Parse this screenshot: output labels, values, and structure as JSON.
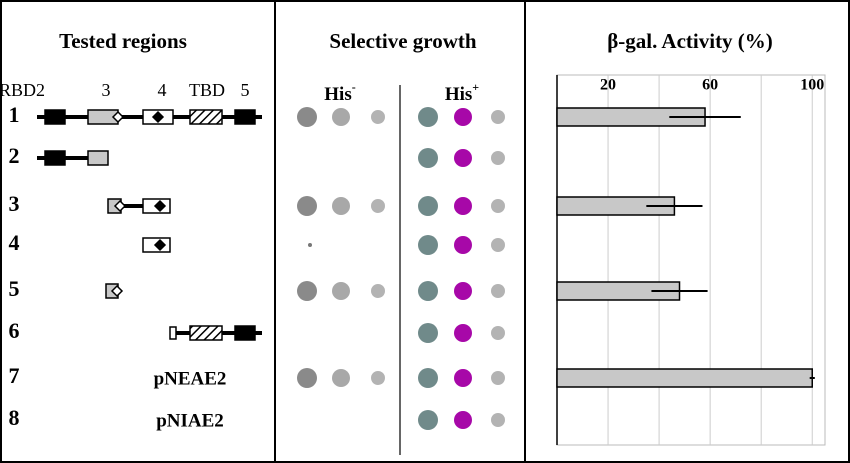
{
  "regions": {
    "title": "Tested regions",
    "domains": [
      "RBD2",
      "3",
      "4",
      "TBD",
      "5"
    ],
    "rows": [
      "1",
      "2",
      "3",
      "4",
      "5",
      "6",
      "7",
      "8"
    ],
    "plasmids": {
      "7": "pNEAE2",
      "8": "pNIAE2"
    }
  },
  "growth": {
    "title": "Selective growth",
    "minus": {
      "label": "His",
      "sup": "-"
    },
    "plus": {
      "label": "His",
      "sup": "+"
    }
  },
  "chart_data": {
    "type": "bar",
    "orientation": "horizontal",
    "title": "β-gal. Activity (%)",
    "values": [
      58,
      null,
      46,
      null,
      48,
      null,
      100,
      null
    ],
    "errors": [
      14,
      null,
      11,
      null,
      11,
      null,
      1,
      null
    ],
    "color": "#c8c8c8",
    "xlim": [
      0,
      105
    ],
    "xticks": [
      20,
      60,
      100
    ],
    "grid": [
      20,
      40,
      60,
      80,
      100
    ]
  }
}
